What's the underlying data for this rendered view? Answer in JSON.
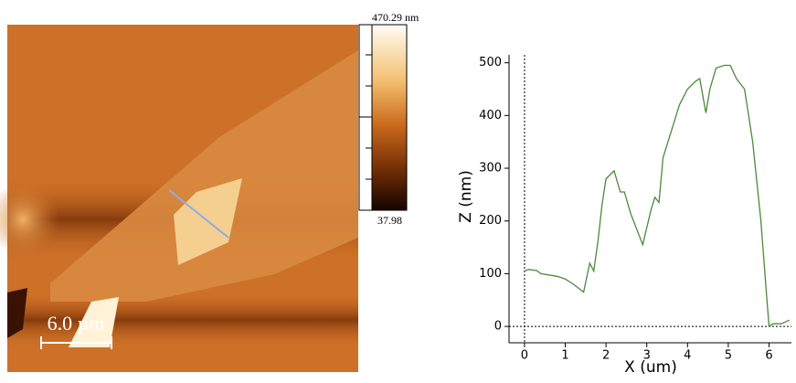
{
  "image": {
    "colorbar": {
      "max_label": "470.29 nm",
      "min_label": "37.98"
    },
    "scale_bar": "6.0 µm"
  },
  "chart_data": {
    "type": "line",
    "x_label": "X (um)",
    "y_label": "Z (nm)",
    "x": [
      0,
      0.1,
      0.3,
      0.4,
      0.8,
      1.0,
      1.2,
      1.4,
      1.45,
      1.6,
      1.7,
      1.8,
      1.9,
      2.0,
      2.2,
      2.35,
      2.45,
      2.6,
      2.8,
      2.9,
      3.1,
      3.2,
      3.3,
      3.4,
      3.6,
      3.8,
      4.0,
      4.2,
      4.3,
      4.45,
      4.55,
      4.7,
      4.9,
      5.05,
      5.2,
      5.4,
      5.6,
      5.8,
      5.95,
      6.0,
      6.1,
      6.3,
      6.5
    ],
    "series": [
      {
        "color": "#4a8a3a",
        "values": [
          105,
          108,
          106,
          100,
          95,
          90,
          80,
          68,
          65,
          120,
          105,
          160,
          230,
          280,
          295,
          255,
          255,
          215,
          175,
          155,
          220,
          245,
          235,
          320,
          370,
          420,
          450,
          465,
          470,
          405,
          450,
          490,
          495,
          495,
          470,
          450,
          350,
          200,
          50,
          0,
          5,
          5,
          12
        ]
      }
    ],
    "xlim": [
      -0.38,
      6.55
    ],
    "ylim": [
      -31,
      515
    ],
    "xticks": [
      0,
      1,
      2,
      3,
      4,
      5,
      6
    ],
    "yticks": [
      0,
      100,
      200,
      300,
      400,
      500
    ]
  }
}
